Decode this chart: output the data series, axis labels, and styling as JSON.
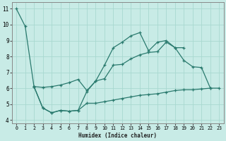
{
  "bg_color": "#c8ebe6",
  "line_color": "#2a7a6e",
  "grid_color": "#a8d8d0",
  "xlabel": "Humidex (Indice chaleur)",
  "xlim": [
    -0.5,
    23.5
  ],
  "ylim": [
    3.8,
    11.4
  ],
  "yticks": [
    4,
    5,
    6,
    7,
    8,
    9,
    10,
    11
  ],
  "xticks": [
    0,
    1,
    2,
    3,
    4,
    5,
    6,
    7,
    8,
    9,
    10,
    11,
    12,
    13,
    14,
    15,
    16,
    17,
    18,
    19,
    20,
    21,
    22,
    23
  ],
  "lines": [
    {
      "x": [
        0,
        1,
        2
      ],
      "y": [
        11.0,
        9.9,
        6.1
      ]
    },
    {
      "x": [
        2,
        3,
        4,
        5,
        6,
        7,
        8,
        9,
        10,
        11,
        12,
        13,
        14,
        15,
        16,
        17,
        18,
        19,
        20,
        21,
        22
      ],
      "y": [
        6.1,
        4.75,
        4.45,
        4.6,
        4.55,
        4.6,
        5.8,
        6.45,
        7.45,
        8.55,
        8.9,
        9.3,
        9.5,
        8.35,
        8.9,
        9.0,
        8.55,
        7.75,
        7.35,
        7.3,
        6.0
      ]
    },
    {
      "x": [
        2,
        3,
        4,
        5,
        6,
        7,
        8,
        9,
        10,
        11,
        12,
        13,
        14,
        15,
        16,
        17,
        18,
        19
      ],
      "y": [
        6.1,
        6.05,
        6.1,
        6.2,
        6.35,
        6.55,
        5.85,
        6.45,
        6.6,
        7.45,
        7.5,
        7.85,
        8.1,
        8.25,
        8.3,
        8.9,
        8.55,
        8.55
      ]
    },
    {
      "x": [
        2,
        3,
        4,
        5,
        6,
        7,
        8,
        9,
        10,
        11,
        12,
        13,
        14,
        15,
        16,
        17,
        18,
        19,
        20,
        21,
        22,
        23
      ],
      "y": [
        6.1,
        4.75,
        4.45,
        4.6,
        4.55,
        4.6,
        5.05,
        5.05,
        5.15,
        5.25,
        5.35,
        5.45,
        5.55,
        5.6,
        5.65,
        5.75,
        5.85,
        5.9,
        5.9,
        5.95,
        6.0,
        6.0
      ]
    }
  ]
}
